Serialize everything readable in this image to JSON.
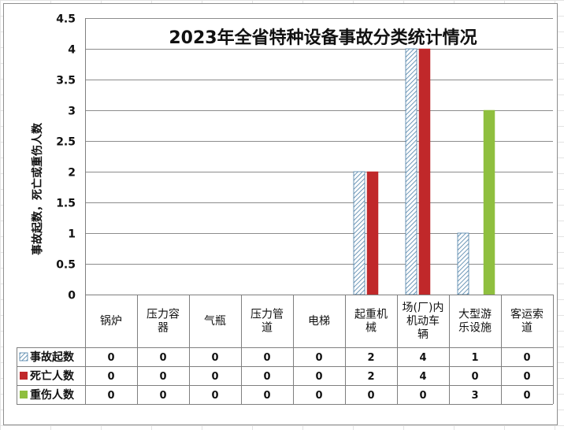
{
  "chart_data": {
    "type": "bar",
    "title": "2023年全省特种设备事故分类统计情况",
    "ylabel": "事故起数，死亡或重伤人数",
    "ylim": [
      0,
      4.5
    ],
    "yticks": [
      "0",
      "0.5",
      "1",
      "1.5",
      "2",
      "2.5",
      "3",
      "3.5",
      "4",
      "4.5"
    ],
    "categories": [
      "锅炉",
      "压力容器",
      "气瓶",
      "压力管道",
      "电梯",
      "起重机械",
      "场(厂)内机动车辆",
      "大型游乐设施",
      "客运索道"
    ],
    "category_lines": [
      [
        "锅炉"
      ],
      [
        "压力容",
        "器"
      ],
      [
        "气瓶"
      ],
      [
        "压力管",
        "道"
      ],
      [
        "电梯"
      ],
      [
        "起重机",
        "械"
      ],
      [
        "场(厂)内",
        "机动车",
        "辆"
      ],
      [
        "大型游",
        "乐设施"
      ],
      [
        "客运索",
        "道"
      ]
    ],
    "series": [
      {
        "name": "事故起数",
        "values": [
          0,
          0,
          0,
          0,
          0,
          2,
          4,
          1,
          0
        ],
        "color": "#9fb6c8",
        "pattern": "diagonal-hatch"
      },
      {
        "name": "死亡人数",
        "values": [
          0,
          0,
          0,
          0,
          0,
          2,
          4,
          0,
          0
        ],
        "color": "#c0282a"
      },
      {
        "name": "重伤人数",
        "values": [
          0,
          0,
          0,
          0,
          0,
          0,
          0,
          3,
          0
        ],
        "color": "#8fbf3f"
      }
    ],
    "data_table": true,
    "grid": true
  }
}
